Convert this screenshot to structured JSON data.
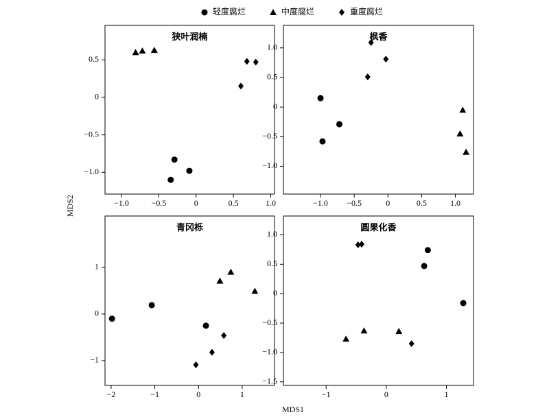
{
  "xlabel": "MDS1",
  "ylabel": "MDS2",
  "chart_data": [
    {
      "type": "scatter",
      "title": "狭叶润楠",
      "xlim": [
        -1.22,
        1.05
      ],
      "ylim": [
        -1.29,
        0.96
      ],
      "xticks": [
        {
          "value": -1.0,
          "label": "−1.0"
        },
        {
          "value": -0.5,
          "label": "−0.5"
        },
        0,
        0.5,
        {
          "value": 1.0,
          "label": "1.0"
        }
      ],
      "yticks": [
        0.5,
        0,
        {
          "value": -0.5,
          "label": "−0.5"
        },
        {
          "value": -1.0,
          "label": "−1.0"
        }
      ],
      "series": [
        {
          "name": "轻度腐烂",
          "color": "#000000",
          "marker": "circle",
          "x": [
            -0.29,
            -0.09,
            -0.34
          ],
          "values": [
            -0.83,
            -0.98,
            -1.1
          ]
        },
        {
          "name": "中度腐烂",
          "color": "#000000",
          "marker": "triangle",
          "x": [
            -0.81,
            -0.72,
            -0.56
          ],
          "values": [
            0.6,
            0.62,
            0.63
          ]
        },
        {
          "name": "重度腐烂",
          "color": "#000000",
          "marker": "diamond",
          "x": [
            0.68,
            0.8,
            0.6
          ],
          "values": [
            0.48,
            0.47,
            0.15
          ]
        }
      ]
    },
    {
      "type": "scatter",
      "title": "枫香",
      "xlim": [
        -1.55,
        1.27
      ],
      "ylim": [
        -1.47,
        1.38
      ],
      "xticks": [
        {
          "value": -1.0,
          "label": "−1.0"
        },
        {
          "value": -0.5,
          "label": "−0.5"
        },
        0,
        0.5,
        {
          "value": 1.0,
          "label": "1.0"
        }
      ],
      "yticks": [
        {
          "value": 1.0,
          "label": "1.0"
        },
        0.5,
        0,
        {
          "value": -0.5,
          "label": "−0.5"
        },
        {
          "value": -1.0,
          "label": "−1.0"
        }
      ],
      "series": [
        {
          "name": "轻度腐烂",
          "color": "#000000",
          "marker": "circle",
          "x": [
            -1.0,
            -0.72,
            -0.97
          ],
          "values": [
            0.15,
            -0.29,
            -0.58
          ]
        },
        {
          "name": "中度腐烂",
          "color": "#000000",
          "marker": "triangle",
          "x": [
            1.11,
            1.07,
            1.16
          ],
          "values": [
            -0.05,
            -0.45,
            -0.76
          ]
        },
        {
          "name": "重度腐烂",
          "color": "#000000",
          "marker": "diamond",
          "x": [
            -0.25,
            -0.03,
            -0.3
          ],
          "values": [
            1.09,
            0.81,
            0.51
          ]
        }
      ]
    },
    {
      "type": "scatter",
      "title": "青冈栎",
      "xlim": [
        -2.14,
        1.74
      ],
      "ylim": [
        -1.53,
        2.1
      ],
      "xticks": [
        {
          "value": -2,
          "label": "−2"
        },
        {
          "value": -1,
          "label": "−1"
        },
        0,
        1
      ],
      "yticks": [
        1,
        0,
        {
          "value": -1,
          "label": "−1"
        }
      ],
      "series": [
        {
          "name": "轻度腐烂",
          "color": "#000000",
          "marker": "circle",
          "x": [
            -1.98,
            -1.07,
            0.17
          ],
          "values": [
            -0.1,
            0.19,
            -0.25
          ]
        },
        {
          "name": "中度腐烂",
          "color": "#000000",
          "marker": "triangle",
          "x": [
            0.49,
            0.74,
            1.29
          ],
          "values": [
            0.71,
            0.9,
            0.49
          ]
        },
        {
          "name": "重度腐烂",
          "color": "#000000",
          "marker": "diamond",
          "x": [
            0.58,
            0.31,
            -0.06
          ],
          "values": [
            -0.46,
            -0.82,
            -1.09
          ]
        }
      ]
    },
    {
      "type": "scatter",
      "title": "圆果化香",
      "xlim": [
        -1.71,
        1.45
      ],
      "ylim": [
        -1.56,
        1.32
      ],
      "xticks": [
        {
          "value": -1,
          "label": "−1"
        },
        0,
        1
      ],
      "yticks": [
        {
          "value": 1.0,
          "label": "1.0"
        },
        0.5,
        0,
        {
          "value": -0.5,
          "label": "−0.5"
        },
        {
          "value": -1.0,
          "label": "−1.0"
        },
        {
          "value": -1.5,
          "label": "−1.5"
        }
      ],
      "series": [
        {
          "name": "轻度腐烂",
          "color": "#000000",
          "marker": "circle",
          "x": [
            0.69,
            0.63,
            1.28
          ],
          "values": [
            0.74,
            0.47,
            -0.16
          ]
        },
        {
          "name": "中度腐烂",
          "color": "#000000",
          "marker": "triangle",
          "x": [
            -0.67,
            -0.37,
            0.21
          ],
          "values": [
            -0.77,
            -0.63,
            -0.64
          ]
        },
        {
          "name": "重度腐烂",
          "color": "#000000",
          "marker": "diamond",
          "x": [
            -0.47,
            -0.41,
            0.42
          ],
          "values": [
            0.83,
            0.84,
            -0.85
          ]
        }
      ]
    }
  ]
}
